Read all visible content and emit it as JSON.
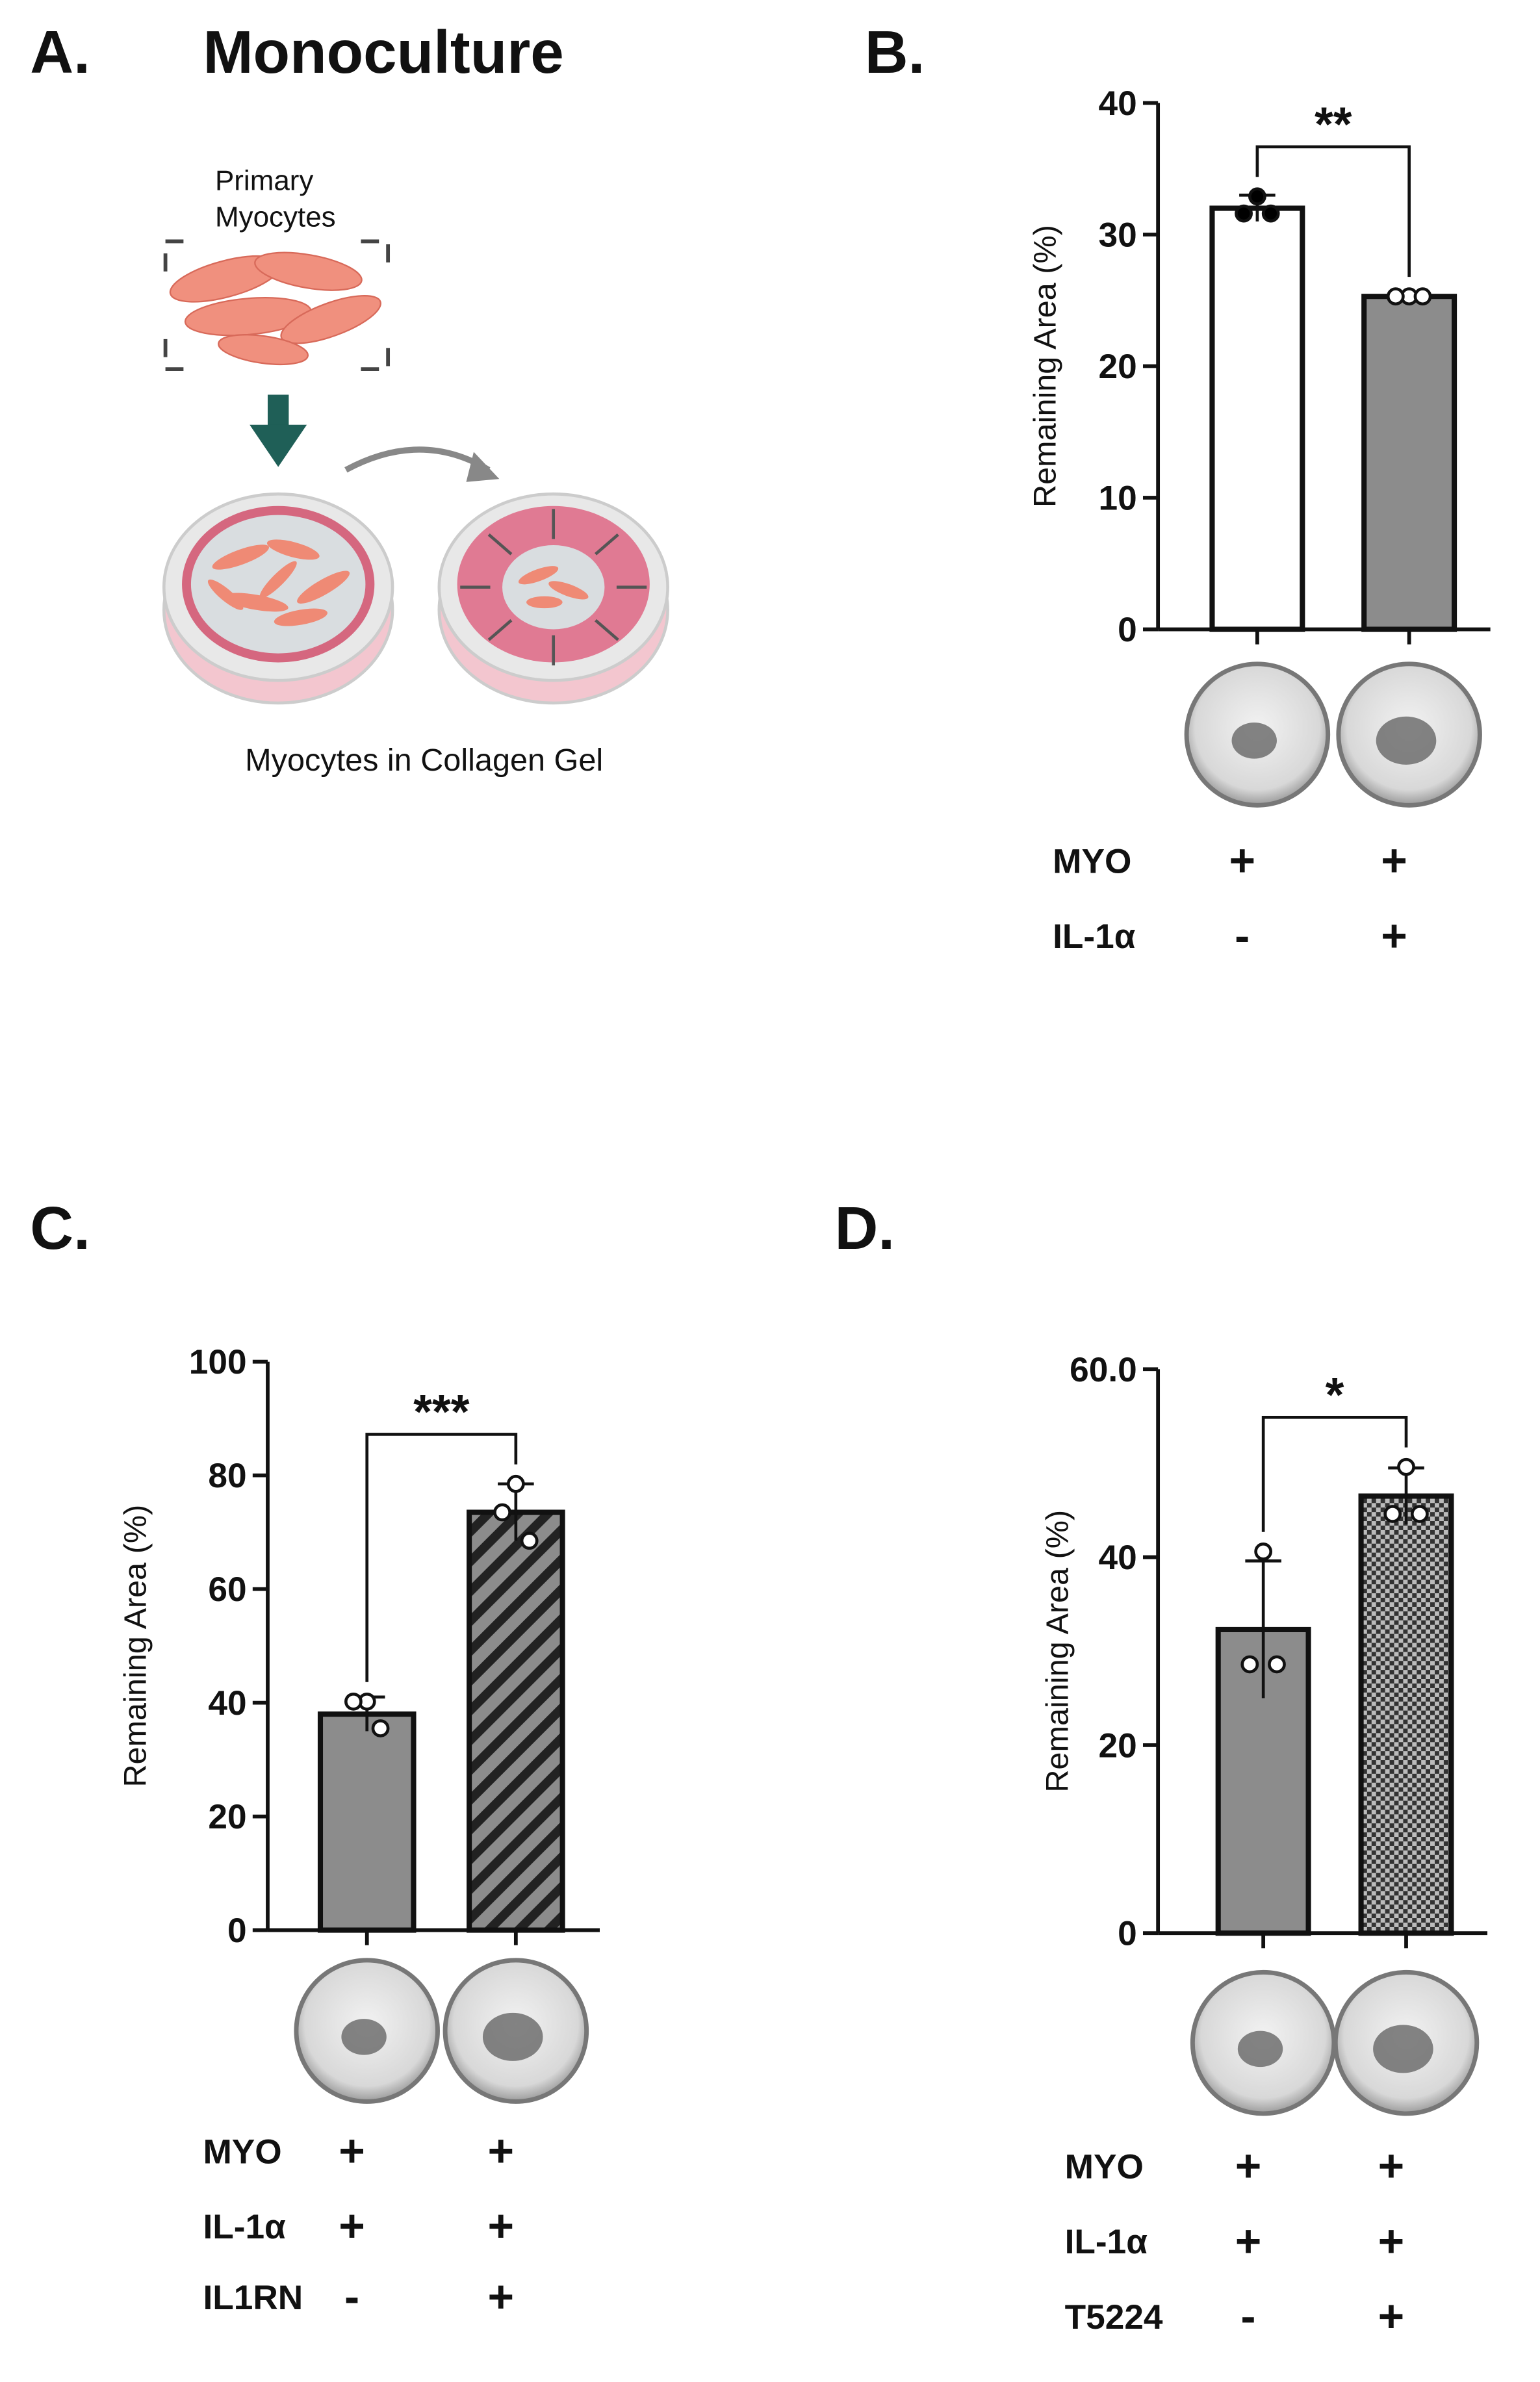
{
  "panel_a": {
    "label": "A.",
    "title": "Monoculture",
    "cell_label_lines": [
      "Primary",
      "Myocytes"
    ],
    "caption": "Myocytes in Collagen Gel"
  },
  "chart_data": [
    {
      "type": "bar",
      "panel_label": "B.",
      "y_label": "Remaining Area (%)",
      "ylim": [
        0,
        40
      ],
      "yticks": [
        0,
        10,
        20,
        30,
        40
      ],
      "values": [
        32,
        25.3
      ],
      "errors": [
        1,
        0.3
      ],
      "points": [
        [
          32.9,
          31.6,
          31.6
        ],
        [
          25.3,
          25.3,
          25.3
        ]
      ],
      "colors": [
        "#ffffff",
        "#8c8c8c"
      ],
      "hatch": [
        "none",
        "none"
      ],
      "point_fill": [
        "#000000",
        "#ffffff"
      ],
      "significance": "**",
      "conditions": [
        {
          "label": "MYO",
          "signs": [
            "+",
            "+"
          ]
        },
        {
          "label": "IL-1α",
          "signs": [
            "-",
            "+"
          ]
        }
      ]
    },
    {
      "type": "bar",
      "panel_label": "C.",
      "y_label": "Remaining Area (%)",
      "ylim": [
        0,
        100
      ],
      "yticks": [
        0,
        20,
        40,
        60,
        80,
        100
      ],
      "values": [
        38,
        73.5
      ],
      "errors": [
        3,
        5
      ],
      "points": [
        [
          40.2,
          40.2,
          35.5
        ],
        [
          78.5,
          73.5,
          68.5
        ]
      ],
      "colors": [
        "#8c8c8c",
        "#8c8c8c"
      ],
      "hatch": [
        "none",
        "stripes"
      ],
      "point_fill": [
        "#ffffff",
        "#ffffff"
      ],
      "significance": "***",
      "conditions": [
        {
          "label": "MYO",
          "signs": [
            "+",
            "+"
          ]
        },
        {
          "label": "IL-1α",
          "signs": [
            "+",
            "+"
          ]
        },
        {
          "label": "IL1RN",
          "signs": [
            "-",
            "+"
          ]
        }
      ]
    },
    {
      "type": "bar",
      "panel_label": "D.",
      "y_label": "Remaining Area (%)",
      "ylim": [
        0,
        60
      ],
      "yticks": [
        0,
        20,
        40,
        {
          "value": 60,
          "label": "60.0"
        }
      ],
      "values": [
        32.3,
        46.5
      ],
      "errors": [
        7.3,
        3
      ],
      "points": [
        [
          40.6,
          28.6,
          28.6
        ],
        [
          49.6,
          44.6,
          44.6
        ]
      ],
      "colors": [
        "#8c8c8c",
        "#8c8c8c"
      ],
      "hatch": [
        "none",
        "checker"
      ],
      "point_fill": [
        "#ffffff",
        "#ffffff"
      ],
      "significance": "*",
      "conditions": [
        {
          "label": "MYO",
          "signs": [
            "+",
            "+"
          ]
        },
        {
          "label": "IL-1α",
          "signs": [
            "+",
            "+"
          ]
        },
        {
          "label": "T5224",
          "signs": [
            "-",
            "+"
          ]
        }
      ]
    }
  ]
}
